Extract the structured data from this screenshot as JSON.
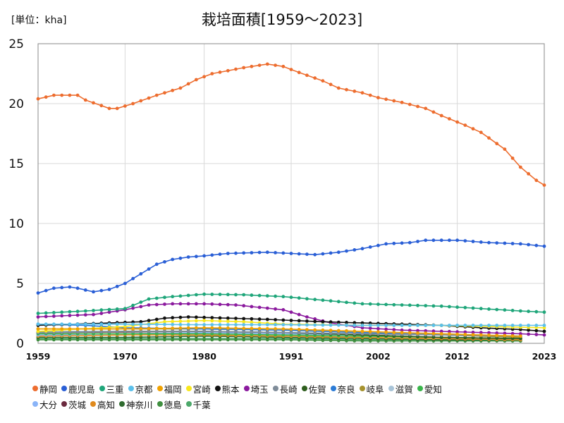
{
  "title": "栽培面積[1959～2023]",
  "unit": "[単位：kha]",
  "chart_data": {
    "type": "line",
    "title": "栽培面積[1959～2023]",
    "ylabel": "[単位：kha]",
    "xlim": [
      1959,
      2023
    ],
    "ylim": [
      0,
      25
    ],
    "yticks": [
      0,
      5,
      10,
      15,
      20,
      25
    ],
    "xtick_labels": [
      "1959",
      "1970",
      "1980",
      "1991",
      "2002",
      "2012",
      "2023"
    ],
    "grid": true,
    "legend_position": "bottom",
    "series": [
      {
        "name": "静岡",
        "color": "#ED6D2F",
        "end_year": 2023,
        "points": [
          [
            1959,
            20.4
          ],
          [
            1961,
            20.7
          ],
          [
            1964,
            20.7
          ],
          [
            1965,
            20.3
          ],
          [
            1968,
            19.6
          ],
          [
            1969,
            19.6
          ],
          [
            1971,
            20.0
          ],
          [
            1974,
            20.7
          ],
          [
            1977,
            21.3
          ],
          [
            1979,
            22.0
          ],
          [
            1981,
            22.5
          ],
          [
            1985,
            23.0
          ],
          [
            1988,
            23.3
          ],
          [
            1990,
            23.1
          ],
          [
            1992,
            22.6
          ],
          [
            1995,
            21.9
          ],
          [
            1997,
            21.3
          ],
          [
            2000,
            20.9
          ],
          [
            2002,
            20.5
          ],
          [
            2005,
            20.1
          ],
          [
            2008,
            19.6
          ],
          [
            2010,
            19.0
          ],
          [
            2013,
            18.2
          ],
          [
            2015,
            17.6
          ],
          [
            2018,
            16.2
          ],
          [
            2020,
            14.7
          ],
          [
            2022,
            13.6
          ],
          [
            2023,
            13.2
          ]
        ]
      },
      {
        "name": "鹿児島",
        "color": "#2A5FD6",
        "end_year": 2023,
        "points": [
          [
            1959,
            4.2
          ],
          [
            1961,
            4.6
          ],
          [
            1963,
            4.7
          ],
          [
            1964,
            4.6
          ],
          [
            1966,
            4.3
          ],
          [
            1968,
            4.5
          ],
          [
            1970,
            5.0
          ],
          [
            1972,
            5.8
          ],
          [
            1974,
            6.6
          ],
          [
            1976,
            7.0
          ],
          [
            1978,
            7.2
          ],
          [
            1980,
            7.3
          ],
          [
            1983,
            7.5
          ],
          [
            1988,
            7.6
          ],
          [
            1994,
            7.4
          ],
          [
            1997,
            7.6
          ],
          [
            2000,
            7.9
          ],
          [
            2003,
            8.3
          ],
          [
            2006,
            8.4
          ],
          [
            2008,
            8.6
          ],
          [
            2012,
            8.6
          ],
          [
            2016,
            8.4
          ],
          [
            2020,
            8.3
          ],
          [
            2023,
            8.1
          ]
        ]
      },
      {
        "name": "三重",
        "color": "#1FA67A",
        "end_year": 2023,
        "points": [
          [
            1959,
            2.5
          ],
          [
            1965,
            2.7
          ],
          [
            1970,
            2.9
          ],
          [
            1973,
            3.7
          ],
          [
            1976,
            3.9
          ],
          [
            1980,
            4.1
          ],
          [
            1985,
            4.05
          ],
          [
            1990,
            3.9
          ],
          [
            1995,
            3.6
          ],
          [
            2000,
            3.3
          ],
          [
            2005,
            3.2
          ],
          [
            2010,
            3.1
          ],
          [
            2015,
            2.9
          ],
          [
            2020,
            2.7
          ],
          [
            2023,
            2.6
          ]
        ]
      },
      {
        "name": "京都",
        "color": "#5BC0EB",
        "end_year": 2023,
        "points": [
          [
            1959,
            1.6
          ],
          [
            1970,
            1.6
          ],
          [
            1980,
            1.55
          ],
          [
            1990,
            1.55
          ],
          [
            2000,
            1.5
          ],
          [
            2010,
            1.5
          ],
          [
            2023,
            1.5
          ]
        ]
      },
      {
        "name": "福岡",
        "color": "#F0A202",
        "end_year": 2020,
        "points": [
          [
            1959,
            1.2
          ],
          [
            1970,
            1.2
          ],
          [
            1980,
            1.3
          ],
          [
            1990,
            1.2
          ],
          [
            2000,
            1.0
          ],
          [
            2010,
            0.8
          ],
          [
            2020,
            0.6
          ]
        ]
      },
      {
        "name": "宮崎",
        "color": "#F8E71C",
        "end_year": 2023,
        "points": [
          [
            1959,
            1.0
          ],
          [
            1970,
            1.4
          ],
          [
            1975,
            1.8
          ],
          [
            1980,
            1.9
          ],
          [
            1985,
            1.8
          ],
          [
            1990,
            1.6
          ],
          [
            2000,
            1.5
          ],
          [
            2010,
            1.5
          ],
          [
            2023,
            1.3
          ]
        ]
      },
      {
        "name": "熊本",
        "color": "#111111",
        "end_year": 2023,
        "points": [
          [
            1959,
            1.5
          ],
          [
            1968,
            1.7
          ],
          [
            1972,
            1.8
          ],
          [
            1975,
            2.1
          ],
          [
            1978,
            2.2
          ],
          [
            1983,
            2.1
          ],
          [
            1988,
            2.0
          ],
          [
            1995,
            1.8
          ],
          [
            2000,
            1.7
          ],
          [
            2005,
            1.6
          ],
          [
            2010,
            1.5
          ],
          [
            2015,
            1.3
          ],
          [
            2020,
            1.15
          ],
          [
            2023,
            1.0
          ]
        ]
      },
      {
        "name": "埼玉",
        "color": "#8B1A9E",
        "end_year": 2023,
        "points": [
          [
            1959,
            2.2
          ],
          [
            1962,
            2.3
          ],
          [
            1966,
            2.4
          ],
          [
            1970,
            2.8
          ],
          [
            1973,
            3.2
          ],
          [
            1976,
            3.3
          ],
          [
            1980,
            3.3
          ],
          [
            1984,
            3.2
          ],
          [
            1987,
            3.0
          ],
          [
            1990,
            2.8
          ],
          [
            1993,
            2.2
          ],
          [
            1996,
            1.7
          ],
          [
            2000,
            1.3
          ],
          [
            2005,
            1.1
          ],
          [
            2010,
            1.0
          ],
          [
            2015,
            0.9
          ],
          [
            2020,
            0.8
          ],
          [
            2023,
            0.7
          ]
        ]
      },
      {
        "name": "長崎",
        "color": "#7F8C99",
        "end_year": 2020,
        "points": [
          [
            1959,
            0.9
          ],
          [
            1970,
            1.0
          ],
          [
            1980,
            1.0
          ],
          [
            1990,
            0.9
          ],
          [
            2000,
            0.8
          ],
          [
            2010,
            0.7
          ],
          [
            2020,
            0.6
          ]
        ]
      },
      {
        "name": "佐賀",
        "color": "#2E5E1E",
        "end_year": 2020,
        "points": [
          [
            1959,
            0.9
          ],
          [
            1970,
            1.0
          ],
          [
            1980,
            1.0
          ],
          [
            1990,
            0.9
          ],
          [
            2000,
            0.7
          ],
          [
            2010,
            0.5
          ],
          [
            2020,
            0.4
          ]
        ]
      },
      {
        "name": "奈良",
        "color": "#2B7BD6",
        "end_year": 2020,
        "points": [
          [
            1959,
            1.6
          ],
          [
            1965,
            1.5
          ],
          [
            1970,
            1.3
          ],
          [
            1980,
            1.2
          ],
          [
            1990,
            1.1
          ],
          [
            2000,
            0.9
          ],
          [
            2010,
            0.7
          ],
          [
            2020,
            0.6
          ]
        ]
      },
      {
        "name": "岐阜",
        "color": "#A6922E",
        "end_year": 2020,
        "points": [
          [
            1959,
            1.2
          ],
          [
            1970,
            1.2
          ],
          [
            1980,
            1.2
          ],
          [
            1990,
            1.1
          ],
          [
            2000,
            0.9
          ],
          [
            2010,
            0.7
          ],
          [
            2020,
            0.5
          ]
        ]
      },
      {
        "name": "滋賀",
        "color": "#A8C4D8",
        "end_year": 2020,
        "points": [
          [
            1959,
            1.0
          ],
          [
            1970,
            1.0
          ],
          [
            1980,
            1.0
          ],
          [
            1990,
            0.9
          ],
          [
            2000,
            0.8
          ],
          [
            2010,
            0.7
          ],
          [
            2020,
            0.6
          ]
        ]
      },
      {
        "name": "愛知",
        "color": "#39B54A",
        "end_year": 2020,
        "points": [
          [
            1959,
            0.8
          ],
          [
            1970,
            0.8
          ],
          [
            1980,
            0.8
          ],
          [
            1990,
            0.7
          ],
          [
            2000,
            0.6
          ],
          [
            2010,
            0.5
          ],
          [
            2020,
            0.4
          ]
        ]
      },
      {
        "name": "大分",
        "color": "#8AB4F8",
        "end_year": 2020,
        "points": [
          [
            1959,
            0.7
          ],
          [
            1970,
            0.8
          ],
          [
            1980,
            0.9
          ],
          [
            1990,
            0.8
          ],
          [
            2000,
            0.7
          ],
          [
            2010,
            0.5
          ],
          [
            2020,
            0.4
          ]
        ]
      },
      {
        "name": "茨城",
        "color": "#6B2A3F",
        "end_year": 2020,
        "points": [
          [
            1959,
            0.9
          ],
          [
            1970,
            0.95
          ],
          [
            1980,
            1.0
          ],
          [
            1990,
            0.9
          ],
          [
            2000,
            0.7
          ],
          [
            2010,
            0.5
          ],
          [
            2020,
            0.4
          ]
        ]
      },
      {
        "name": "高知",
        "color": "#E08A1E",
        "end_year": 2020,
        "points": [
          [
            1959,
            0.6
          ],
          [
            1970,
            0.7
          ],
          [
            1980,
            0.7
          ],
          [
            1990,
            0.6
          ],
          [
            2000,
            0.5
          ],
          [
            2010,
            0.4
          ],
          [
            2020,
            0.3
          ]
        ]
      },
      {
        "name": "神奈川",
        "color": "#2F6B2F",
        "end_year": 2020,
        "points": [
          [
            1959,
            0.5
          ],
          [
            1970,
            0.5
          ],
          [
            1980,
            0.6
          ],
          [
            1990,
            0.5
          ],
          [
            2000,
            0.4
          ],
          [
            2010,
            0.3
          ],
          [
            2020,
            0.3
          ]
        ]
      },
      {
        "name": "徳島",
        "color": "#3F8F3F",
        "end_year": 2020,
        "points": [
          [
            1959,
            0.3
          ],
          [
            1970,
            0.3
          ],
          [
            1980,
            0.3
          ],
          [
            1990,
            0.3
          ],
          [
            2000,
            0.2
          ],
          [
            2010,
            0.2
          ],
          [
            2020,
            0.2
          ]
        ]
      },
      {
        "name": "千葉",
        "color": "#4CA86A",
        "end_year": 2020,
        "points": [
          [
            1959,
            0.4
          ],
          [
            1970,
            0.4
          ],
          [
            1980,
            0.4
          ],
          [
            1990,
            0.4
          ],
          [
            2000,
            0.3
          ],
          [
            2010,
            0.3
          ],
          [
            2020,
            0.2
          ]
        ]
      }
    ]
  }
}
